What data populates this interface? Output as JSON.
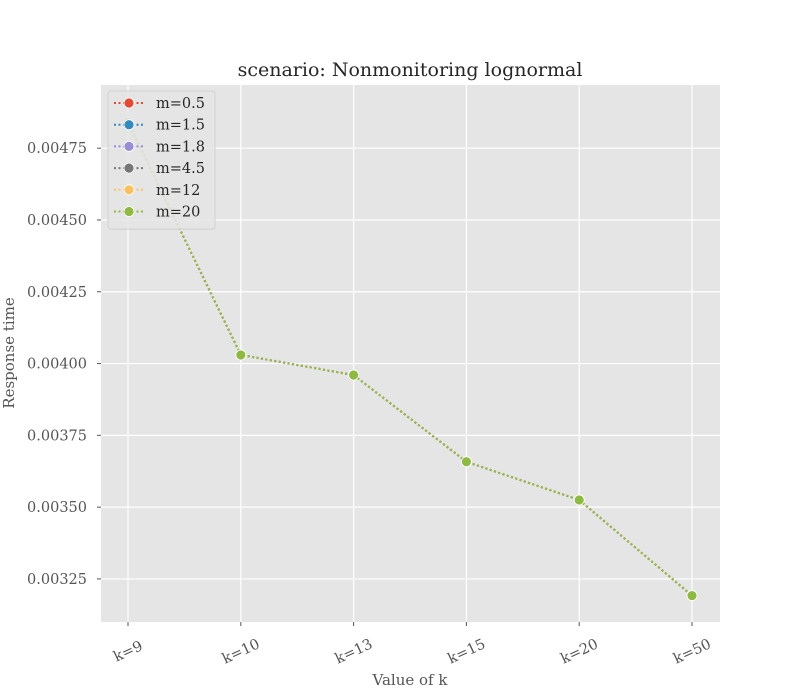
{
  "chart_data": {
    "type": "line",
    "title": "scenario: Nonmonitoring lognormal",
    "xlabel": "Value of k",
    "ylabel": "Response time",
    "categories": [
      "k=9",
      "k=10",
      "k=13",
      "k=15",
      "k=20",
      "k=50"
    ],
    "yticks": [
      "0.00325",
      "0.00350",
      "0.00375",
      "0.00400",
      "0.00425",
      "0.00450",
      "0.00475"
    ],
    "ylim": [
      0.0031,
      0.00497
    ],
    "grid": true,
    "legend_position": "top-left",
    "series": [
      {
        "name": "m=0.5",
        "color": "#E24A33",
        "values": [
          0.00484,
          0.00403,
          0.00396,
          0.003658,
          0.003525,
          0.003192
        ]
      },
      {
        "name": "m=1.5",
        "color": "#348ABD",
        "values": [
          0.00484,
          0.00403,
          0.00396,
          0.003658,
          0.003525,
          0.003192
        ]
      },
      {
        "name": "m=1.8",
        "color": "#988ED5",
        "values": [
          0.00484,
          0.00403,
          0.00396,
          0.003658,
          0.003525,
          0.003192
        ]
      },
      {
        "name": "m=4.5",
        "color": "#777777",
        "values": [
          0.00484,
          0.00403,
          0.00396,
          0.003658,
          0.003525,
          0.003192
        ]
      },
      {
        "name": "m=12",
        "color": "#FBC15E",
        "values": [
          0.00484,
          0.00403,
          0.00396,
          0.003658,
          0.003525,
          0.003192
        ]
      },
      {
        "name": "m=20",
        "color": "#8EBA42",
        "values": [
          0.00484,
          0.00403,
          0.00396,
          0.003658,
          0.003525,
          0.003192
        ]
      }
    ]
  }
}
